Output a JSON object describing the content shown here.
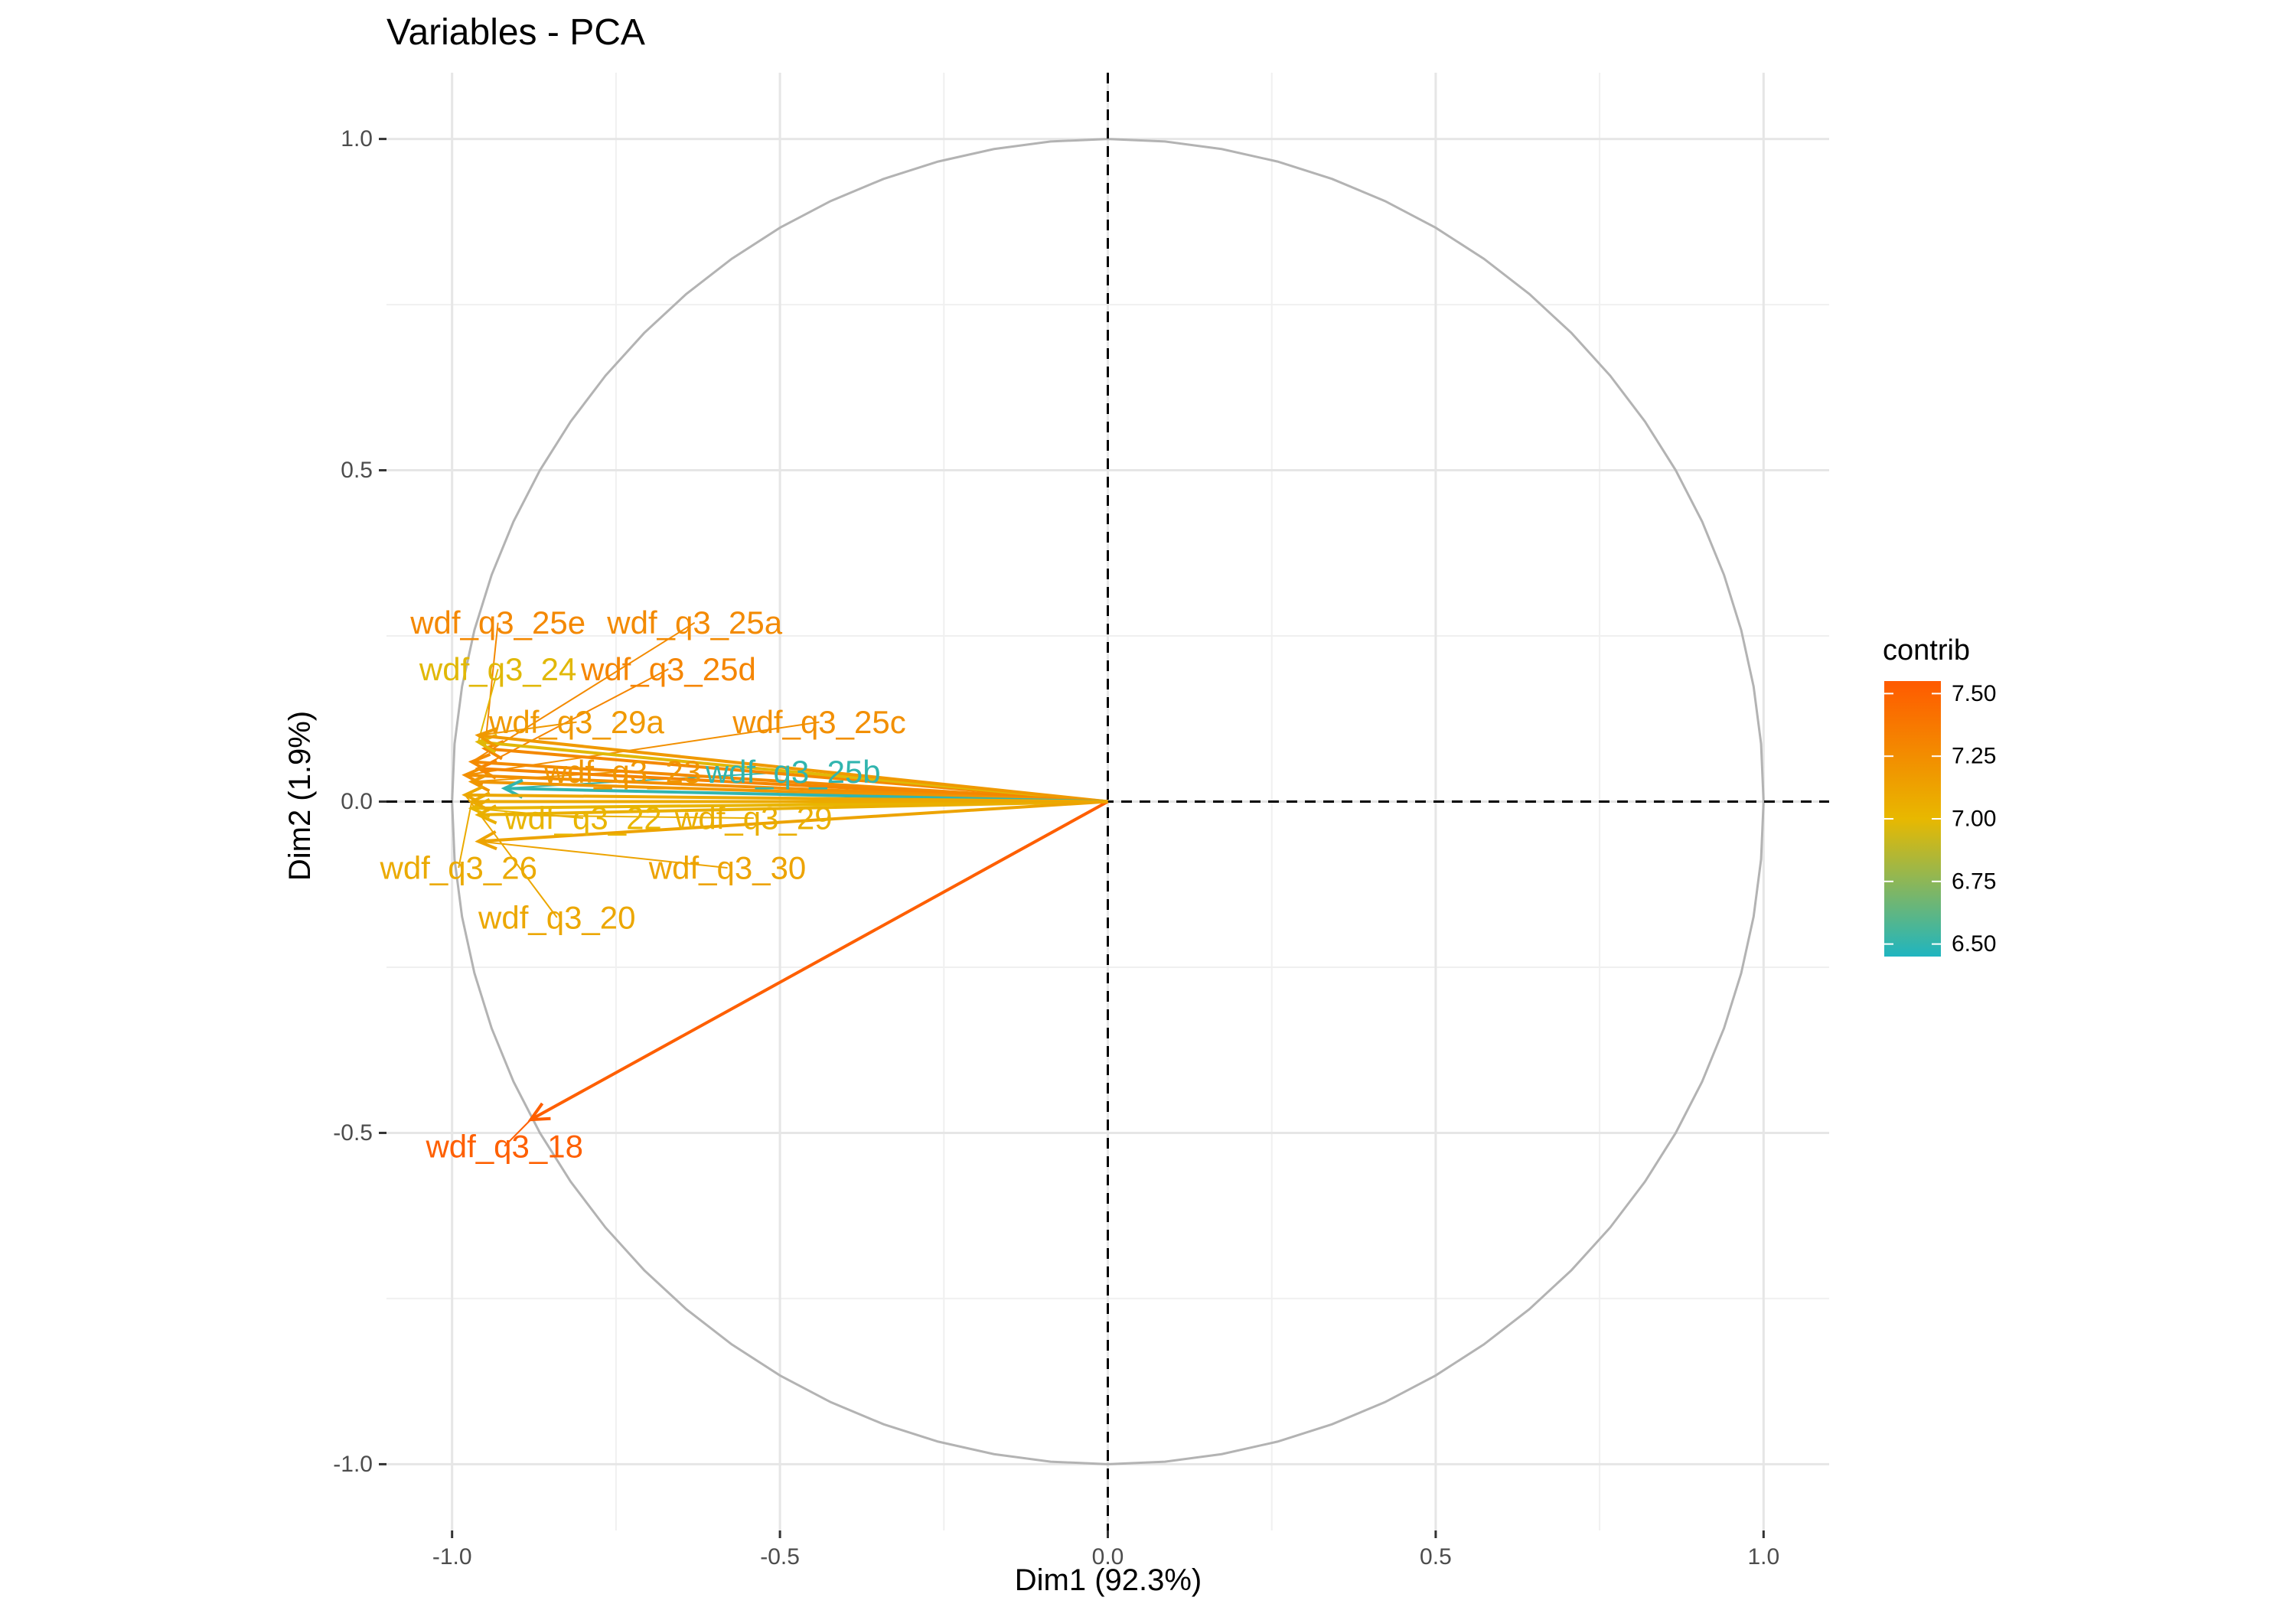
{
  "chart_data": {
    "type": "scatter",
    "title": "Variables - PCA",
    "xlabel": "Dim1 (92.3%)",
    "ylabel": "Dim2 (1.9%)",
    "xlim": [
      -1.1,
      1.1
    ],
    "ylim": [
      -1.1,
      1.1
    ],
    "x_ticks": [
      -1.0,
      -0.5,
      0.0,
      0.5,
      1.0
    ],
    "x_tick_labels": [
      "-1.0",
      "-0.5",
      "0.0",
      "0.5",
      "1.0"
    ],
    "y_ticks": [
      -1.0,
      -0.5,
      0.0,
      0.5,
      1.0
    ],
    "y_tick_labels": [
      "-1.0",
      "-0.5",
      "0.0",
      "0.5",
      "1.0"
    ],
    "grid": true,
    "unit_circle": true,
    "reference_lines": {
      "x": 0,
      "y": 0,
      "style": "dashed"
    },
    "legend": {
      "title": "contrib",
      "position": "right",
      "gradient": [
        "#1fb5c0",
        "#e8b800",
        "#ff5a00"
      ],
      "range": [
        6.45,
        7.55
      ],
      "ticks": [
        6.5,
        6.75,
        7.0,
        7.25,
        7.5
      ],
      "tick_labels": [
        "6.50",
        "6.75",
        "7.00",
        "7.25",
        "7.50"
      ]
    },
    "points": [
      {
        "name": "wdf_q3_18",
        "x": -0.88,
        "y": -0.48,
        "contrib": 7.52,
        "label_x": -0.92,
        "label_y": -0.52
      },
      {
        "name": "wdf_q3_25e",
        "x": -0.95,
        "y": 0.08,
        "contrib": 7.28,
        "label_x": -0.93,
        "label_y": 0.27
      },
      {
        "name": "wdf_q3_25a",
        "x": -0.97,
        "y": 0.06,
        "contrib": 7.27,
        "label_x": -0.63,
        "label_y": 0.27
      },
      {
        "name": "wdf_q3_24",
        "x": -0.96,
        "y": 0.09,
        "contrib": 6.98,
        "label_x": -0.93,
        "label_y": 0.2
      },
      {
        "name": "wdf_q3_25d",
        "x": -0.96,
        "y": 0.05,
        "contrib": 7.3,
        "label_x": -0.67,
        "label_y": 0.2
      },
      {
        "name": "wdf_q3_29a",
        "x": -0.96,
        "y": 0.1,
        "contrib": 7.18,
        "label_x": -0.81,
        "label_y": 0.12
      },
      {
        "name": "wdf_q3_25c",
        "x": -0.98,
        "y": 0.04,
        "contrib": 7.24,
        "label_x": -0.44,
        "label_y": 0.12
      },
      {
        "name": "wdf_q3_23",
        "x": -0.97,
        "y": 0.03,
        "contrib": 7.2,
        "label_x": -0.74,
        "label_y": 0.045
      },
      {
        "name": "wdf_q3_25b",
        "x": -0.92,
        "y": 0.02,
        "contrib": 6.5,
        "label_x": -0.48,
        "label_y": 0.045
      },
      {
        "name": "wdf_q3_22",
        "x": -0.97,
        "y": -0.01,
        "contrib": 7.02,
        "label_x": -0.8,
        "label_y": -0.025
      },
      {
        "name": "wdf_q3_29",
        "x": -0.96,
        "y": -0.02,
        "contrib": 7.05,
        "label_x": -0.54,
        "label_y": -0.025
      },
      {
        "name": "wdf_q3_26",
        "x": -0.97,
        "y": 0.0,
        "contrib": 7.08,
        "label_x": -0.99,
        "label_y": -0.1
      },
      {
        "name": "wdf_q3_30",
        "x": -0.96,
        "y": -0.06,
        "contrib": 7.12,
        "label_x": -0.58,
        "label_y": -0.1
      },
      {
        "name": "wdf_q3_20",
        "x": -0.98,
        "y": 0.01,
        "contrib": 7.1,
        "label_x": -0.84,
        "label_y": -0.175
      }
    ]
  }
}
